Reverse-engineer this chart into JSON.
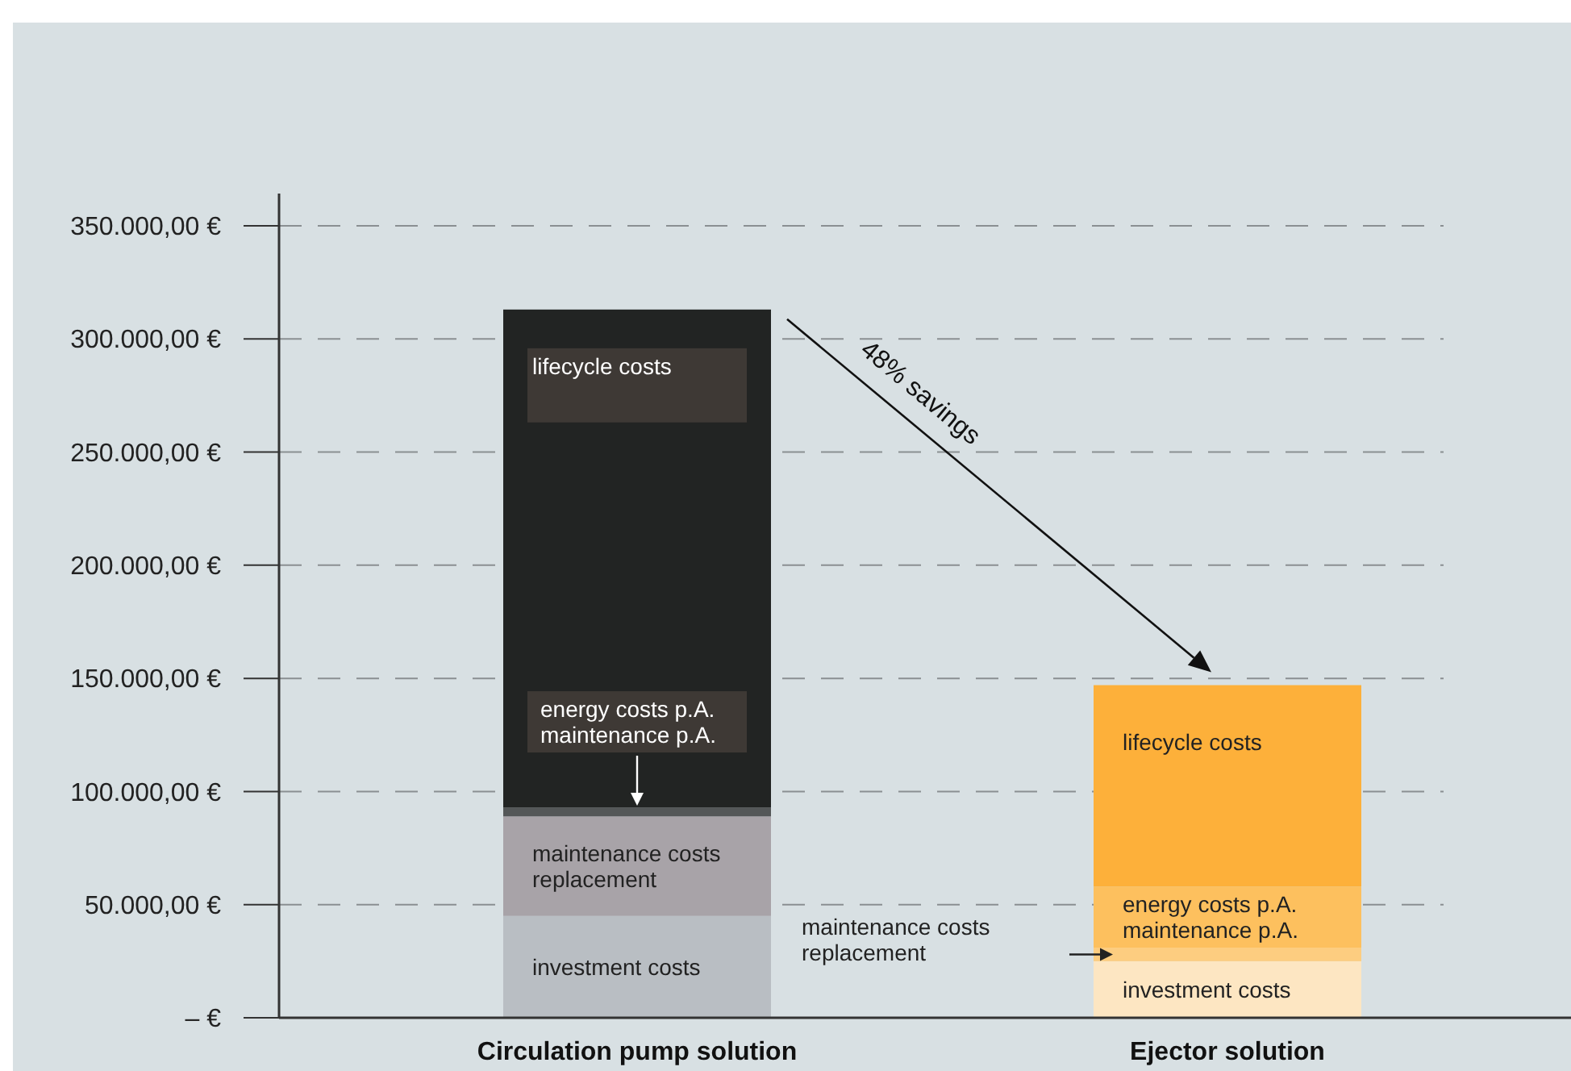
{
  "chart_data": {
    "type": "bar",
    "stacked": true,
    "categories": [
      "Circulation pump solution",
      "Ejector solution"
    ],
    "series": [
      {
        "name": "investment costs",
        "colors": [
          "#b9bec3",
          "#fde6c2"
        ],
        "values": [
          45000,
          25000
        ]
      },
      {
        "name": "maintenance costs\nreplacement",
        "colors": [
          "#a8a3a8",
          "#fdcd80"
        ],
        "values": [
          44000,
          6000
        ]
      },
      {
        "name": "energy costs p.A.\nmaintenance p.A.",
        "colors": [
          "#545758",
          "#fdc05e"
        ],
        "values": [
          4000,
          27000
        ]
      },
      {
        "name": "lifecycle costs",
        "colors": [
          "#222423",
          "#fdb03a"
        ],
        "values": [
          220000,
          89000
        ]
      }
    ],
    "ylim": [
      0,
      350000
    ],
    "yticks": [
      {
        "value": 0,
        "label": "– €"
      },
      {
        "value": 50000,
        "label": "50.000,00 €"
      },
      {
        "value": 100000,
        "label": "100.000,00 €"
      },
      {
        "value": 150000,
        "label": "150.000,00 €"
      },
      {
        "value": 200000,
        "label": "200.000,00 €"
      },
      {
        "value": 250000,
        "label": "250.000,00 €"
      },
      {
        "value": 300000,
        "label": "300.000,00 €"
      },
      {
        "value": 350000,
        "label": "350.000,00 €"
      }
    ],
    "grid": "y",
    "annotations": [
      "48% savings"
    ]
  }
}
